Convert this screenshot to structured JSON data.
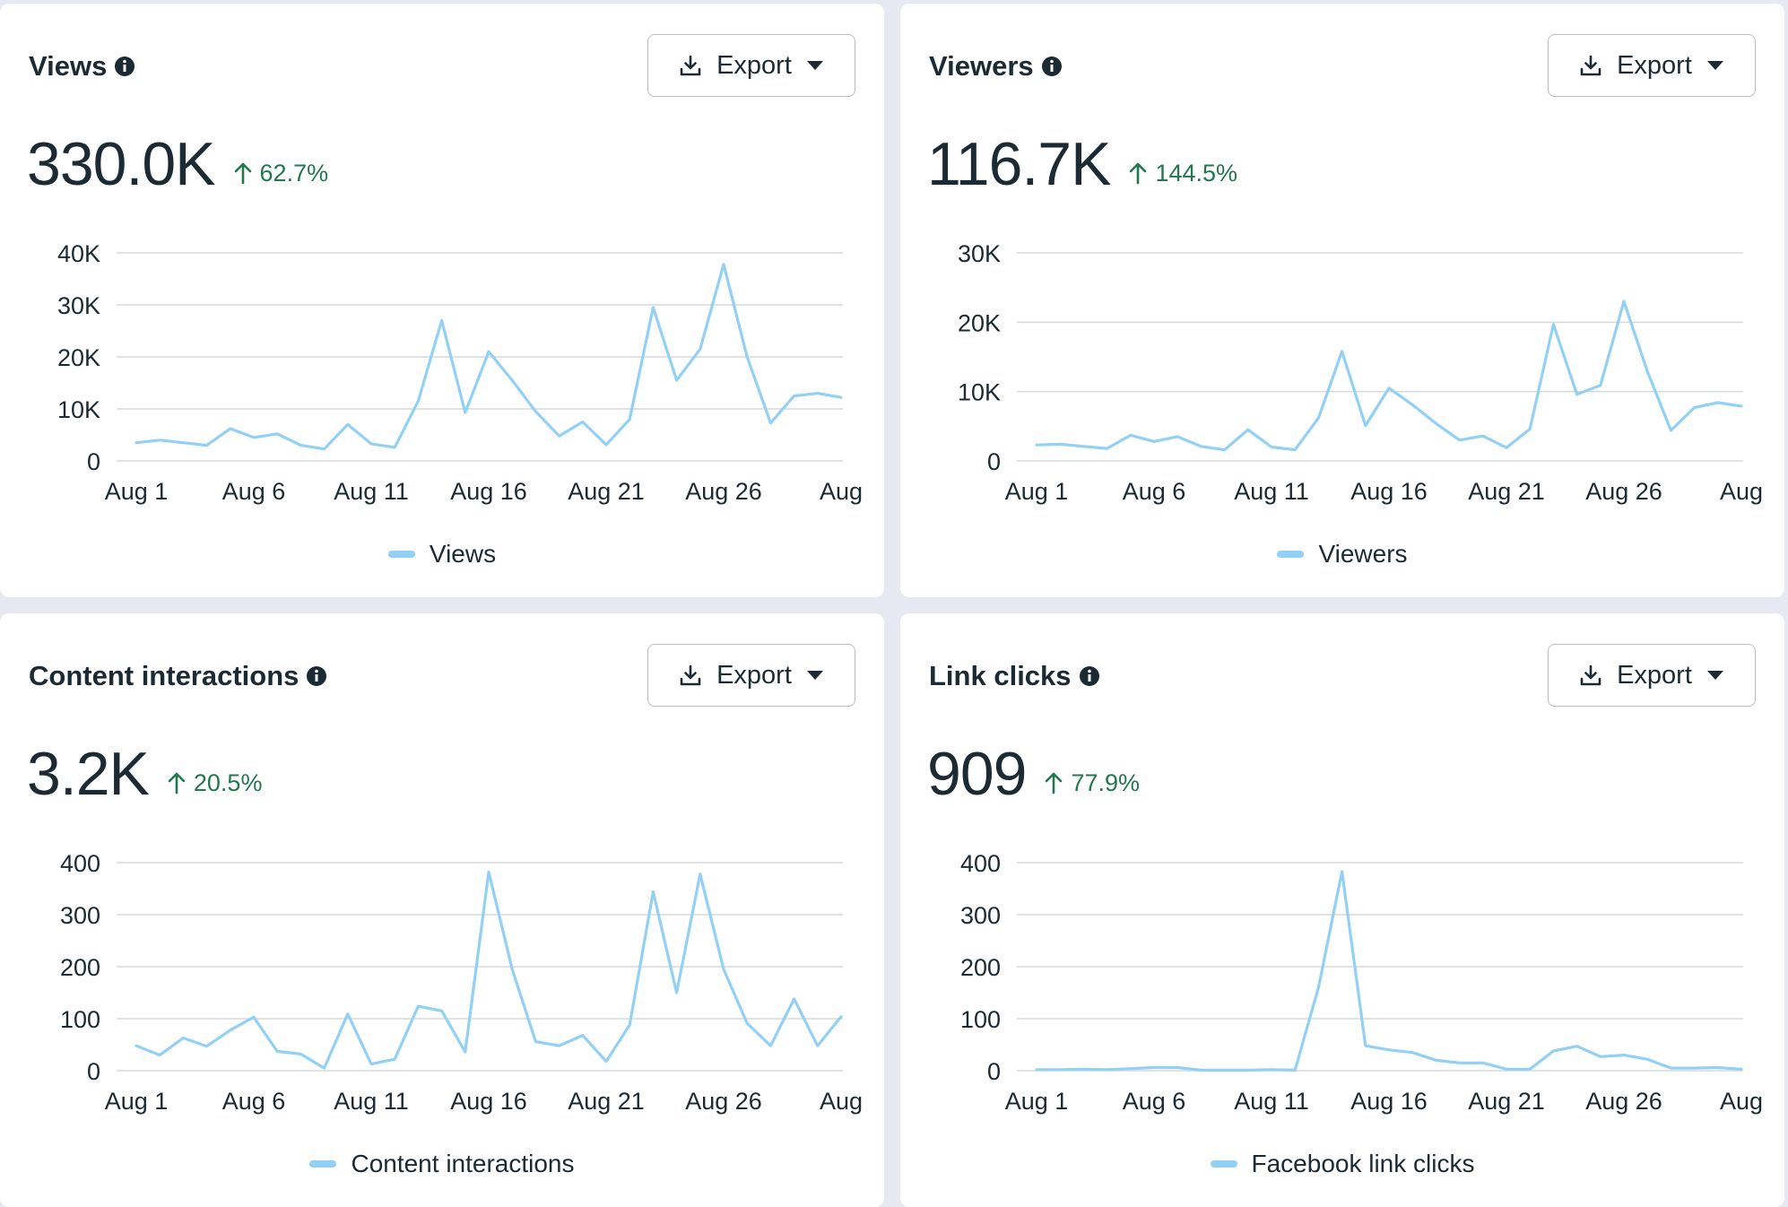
{
  "ui": {
    "export_label": "Export",
    "line_color": "#93d0f6",
    "positive_color": "#22774d",
    "gridline_color": "#d5d9de"
  },
  "cards": [
    {
      "title": "Views",
      "value": "330.0K",
      "change": "62.7%",
      "chart_data": {
        "type": "line",
        "x": [
          "Aug 1",
          "Aug 2",
          "Aug 3",
          "Aug 4",
          "Aug 5",
          "Aug 6",
          "Aug 7",
          "Aug 8",
          "Aug 9",
          "Aug 10",
          "Aug 11",
          "Aug 12",
          "Aug 13",
          "Aug 14",
          "Aug 15",
          "Aug 16",
          "Aug 17",
          "Aug 18",
          "Aug 19",
          "Aug 20",
          "Aug 21",
          "Aug 22",
          "Aug 23",
          "Aug 24",
          "Aug 25",
          "Aug 26",
          "Aug 27",
          "Aug 28",
          "Aug 29",
          "Aug 30",
          "Aug 31"
        ],
        "tick_labels": [
          "Aug 1",
          "Aug 6",
          "Aug 11",
          "Aug 16",
          "Aug 21",
          "Aug 26",
          "Aug"
        ],
        "yticks": [
          "0",
          "10K",
          "20K",
          "30K",
          "40K"
        ],
        "ylim": [
          0,
          40000
        ],
        "series": [
          {
            "name": "Views",
            "values": [
              3500,
              4000,
              3500,
              3000,
              6200,
              4500,
              5200,
              3000,
              2300,
              7000,
              3300,
              2600,
              11500,
              27000,
              9300,
              21000,
              15500,
              9500,
              4800,
              7500,
              3100,
              8000,
              29500,
              15500,
              21500,
              37800,
              20000,
              7300,
              12500,
              13000,
              12200
            ]
          }
        ],
        "grid": true,
        "legend": "bottom-center"
      }
    },
    {
      "title": "Viewers",
      "value": "116.7K",
      "change": "144.5%",
      "chart_data": {
        "type": "line",
        "x": [
          "Aug 1",
          "Aug 2",
          "Aug 3",
          "Aug 4",
          "Aug 5",
          "Aug 6",
          "Aug 7",
          "Aug 8",
          "Aug 9",
          "Aug 10",
          "Aug 11",
          "Aug 12",
          "Aug 13",
          "Aug 14",
          "Aug 15",
          "Aug 16",
          "Aug 17",
          "Aug 18",
          "Aug 19",
          "Aug 20",
          "Aug 21",
          "Aug 22",
          "Aug 23",
          "Aug 24",
          "Aug 25",
          "Aug 26",
          "Aug 27",
          "Aug 28",
          "Aug 29",
          "Aug 30",
          "Aug 31"
        ],
        "tick_labels": [
          "Aug 1",
          "Aug 6",
          "Aug 11",
          "Aug 16",
          "Aug 21",
          "Aug 26",
          "Aug"
        ],
        "yticks": [
          "0",
          "10K",
          "20K",
          "30K"
        ],
        "ylim": [
          0,
          30000
        ],
        "series": [
          {
            "name": "Viewers",
            "values": [
              2300,
              2400,
              2100,
              1800,
              3700,
              2800,
              3500,
              2100,
              1600,
              4500,
              2000,
              1600,
              6200,
              15800,
              5100,
              10500,
              8100,
              5400,
              3000,
              3600,
              1900,
              4600,
              19700,
              9600,
              10900,
              23000,
              12900,
              4400,
              7700,
              8400,
              7900
            ]
          }
        ],
        "grid": true,
        "legend": "bottom-center"
      }
    },
    {
      "title": "Content interactions",
      "value": "3.2K",
      "change": "20.5%",
      "chart_data": {
        "type": "line",
        "x": [
          "Aug 1",
          "Aug 2",
          "Aug 3",
          "Aug 4",
          "Aug 5",
          "Aug 6",
          "Aug 7",
          "Aug 8",
          "Aug 9",
          "Aug 10",
          "Aug 11",
          "Aug 12",
          "Aug 13",
          "Aug 14",
          "Aug 15",
          "Aug 16",
          "Aug 17",
          "Aug 18",
          "Aug 19",
          "Aug 20",
          "Aug 21",
          "Aug 22",
          "Aug 23",
          "Aug 24",
          "Aug 25",
          "Aug 26",
          "Aug 27",
          "Aug 28",
          "Aug 29",
          "Aug 30",
          "Aug 31"
        ],
        "tick_labels": [
          "Aug 1",
          "Aug 6",
          "Aug 11",
          "Aug 16",
          "Aug 21",
          "Aug 26",
          "Aug"
        ],
        "yticks": [
          "0",
          "100",
          "200",
          "300",
          "400"
        ],
        "ylim": [
          0,
          400
        ],
        "series": [
          {
            "name": "Content interactions",
            "values": [
              48,
              30,
              63,
              47,
              78,
              103,
              37,
              32,
              5,
              109,
              13,
              22,
              124,
              115,
              36,
              382,
              195,
              56,
              48,
              68,
              18,
              88,
              344,
              150,
              378,
              195,
              91,
              48,
              138,
              48,
              104
            ]
          }
        ],
        "grid": true,
        "legend": "bottom-center"
      }
    },
    {
      "title": "Link clicks",
      "value": "909",
      "change": "77.9%",
      "chart_data": {
        "type": "line",
        "x": [
          "Aug 1",
          "Aug 2",
          "Aug 3",
          "Aug 4",
          "Aug 5",
          "Aug 6",
          "Aug 7",
          "Aug 8",
          "Aug 9",
          "Aug 10",
          "Aug 11",
          "Aug 12",
          "Aug 13",
          "Aug 14",
          "Aug 15",
          "Aug 16",
          "Aug 17",
          "Aug 18",
          "Aug 19",
          "Aug 20",
          "Aug 21",
          "Aug 22",
          "Aug 23",
          "Aug 24",
          "Aug 25",
          "Aug 26",
          "Aug 27",
          "Aug 28",
          "Aug 29",
          "Aug 30",
          "Aug 31"
        ],
        "tick_labels": [
          "Aug 1",
          "Aug 6",
          "Aug 11",
          "Aug 16",
          "Aug 21",
          "Aug 26",
          "Aug"
        ],
        "yticks": [
          "0",
          "100",
          "200",
          "300",
          "400"
        ],
        "ylim": [
          0,
          400
        ],
        "series": [
          {
            "name": "Facebook link clicks",
            "values": [
              2,
              2,
              3,
              2,
              4,
              6,
              6,
              1,
              1,
              1,
              2,
              1,
              160,
              383,
              48,
              40,
              35,
              20,
              15,
              15,
              3,
              3,
              38,
              47,
              27,
              30,
              22,
              5,
              5,
              6,
              3
            ]
          }
        ],
        "grid": true,
        "legend": "bottom-center"
      }
    }
  ]
}
